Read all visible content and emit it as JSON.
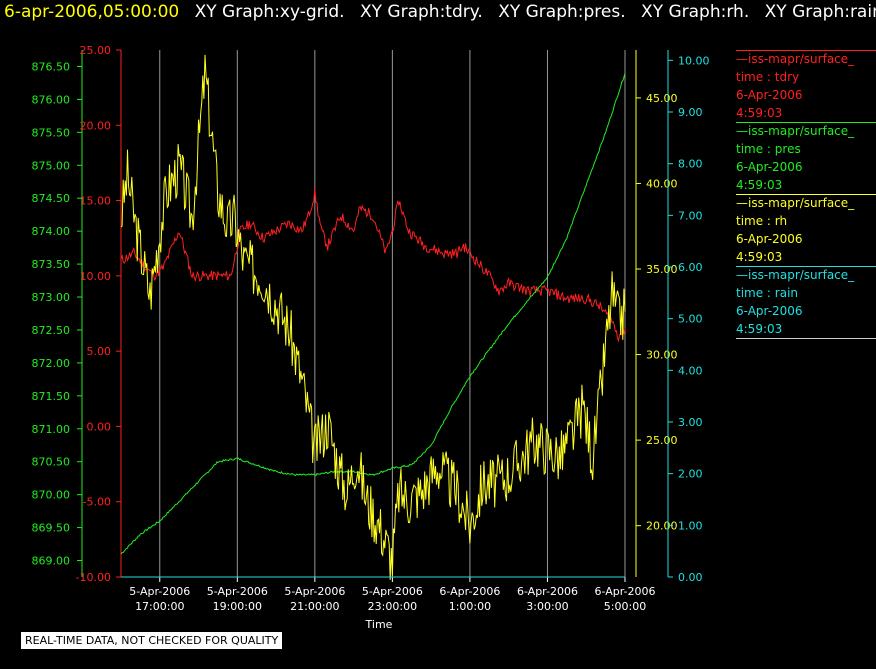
{
  "header": {
    "timestamp": "6-apr-2006,05:00:00",
    "graphs": [
      "XY Graph:xy-grid.",
      "XY Graph:tdry.",
      "XY Graph:pres.",
      "XY Graph:rh.",
      "XY Graph:rain."
    ]
  },
  "legend": [
    {
      "source": "—iss-mapr/surface_",
      "field": "time : tdry",
      "date": "6-Apr-2006",
      "time": "4:59:03",
      "color": "#ff2020"
    },
    {
      "source": "—iss-mapr/surface_",
      "field": "time : pres",
      "date": "6-Apr-2006",
      "time": "4:59:03",
      "color": "#20ee20"
    },
    {
      "source": "—iss-mapr/surface_",
      "field": "time : rh",
      "date": "6-Apr-2006",
      "time": "4:59:03",
      "color": "#ffff20"
    },
    {
      "source": "—iss-mapr/surface_",
      "field": "time : rain",
      "date": "6-Apr-2006",
      "time": "4:59:03",
      "color": "#20e0e0"
    }
  ],
  "disclaimer": "REAL-TIME DATA, NOT CHECKED FOR QUALITY",
  "chart_data": {
    "type": "line",
    "xlabel": "Time",
    "x_range": [
      "5-Apr-2006 16:00:00",
      "6-Apr-2006 05:00:00"
    ],
    "x_ticks": [
      {
        "date": "5-Apr-2006",
        "time": "17:00:00"
      },
      {
        "date": "5-Apr-2006",
        "time": "19:00:00"
      },
      {
        "date": "5-Apr-2006",
        "time": "21:00:00"
      },
      {
        "date": "5-Apr-2006",
        "time": "23:00:00"
      },
      {
        "date": "6-Apr-2006",
        "time": "1:00:00"
      },
      {
        "date": "6-Apr-2006",
        "time": "3:00:00"
      },
      {
        "date": "6-Apr-2006",
        "time": "5:00:00"
      }
    ],
    "grid": "vertical",
    "axes": {
      "pres": {
        "ylim": [
          868.75,
          876.75
        ],
        "ticks": [
          "869.00",
          "869.50",
          "870.00",
          "870.50",
          "871.00",
          "871.50",
          "872.00",
          "872.50",
          "873.00",
          "873.50",
          "874.00",
          "874.50",
          "875.00",
          "875.50",
          "876.00",
          "876.50"
        ],
        "color": "#20ee20"
      },
      "tdry": {
        "ylim": [
          -10,
          25
        ],
        "ticks": [
          "-10.00",
          "-5.00",
          "0.00",
          "5.00",
          "10.00",
          "15.00",
          "20.00",
          "25.00"
        ],
        "color": "#ff2020"
      },
      "rh": {
        "ylim": [
          17.0,
          47.8
        ],
        "ticks": [
          "20.00",
          "25.00",
          "30.00",
          "35.00",
          "40.00",
          "45.00"
        ],
        "color": "#ffff20"
      },
      "rain": {
        "ylim": [
          0.0,
          10.2
        ],
        "ticks": [
          "0.00",
          "1.00",
          "2.00",
          "3.00",
          "4.00",
          "5.00",
          "6.00",
          "7.00",
          "8.00",
          "9.00",
          "10.00"
        ],
        "color": "#20e0e0"
      }
    },
    "series": [
      {
        "name": "tdry",
        "axis": "tdry",
        "x": [
          "5-Apr-2006 16:00:00",
          "5-Apr-2006 16:20:00",
          "5-Apr-2006 16:50:00",
          "5-Apr-2006 17:05:00",
          "5-Apr-2006 17:30:00",
          "5-Apr-2006 17:50:00",
          "5-Apr-2006 18:20:00",
          "5-Apr-2006 18:50:00",
          "5-Apr-2006 19:05:00",
          "5-Apr-2006 19:20:00",
          "5-Apr-2006 19:40:00",
          "5-Apr-2006 20:00:00",
          "5-Apr-2006 20:20:00",
          "5-Apr-2006 20:40:00",
          "5-Apr-2006 20:50:00",
          "5-Apr-2006 21:00:00",
          "5-Apr-2006 21:10:00",
          "5-Apr-2006 21:20:00",
          "5-Apr-2006 21:40:00",
          "5-Apr-2006 22:00:00",
          "5-Apr-2006 22:10:00",
          "5-Apr-2006 22:30:00",
          "5-Apr-2006 22:50:00",
          "5-Apr-2006 23:00:00",
          "5-Apr-2006 23:10:00",
          "5-Apr-2006 23:25:00",
          "5-Apr-2006 23:50:00",
          "6-Apr-2006 00:20:00",
          "6-Apr-2006 00:40:00",
          "6-Apr-2006 00:50:00",
          "6-Apr-2006 01:10:00",
          "6-Apr-2006 01:30:00",
          "6-Apr-2006 01:45:00",
          "6-Apr-2006 02:00:00",
          "6-Apr-2006 02:30:00",
          "6-Apr-2006 03:00:00",
          "6-Apr-2006 03:30:00",
          "6-Apr-2006 04:00:00",
          "6-Apr-2006 04:20:00",
          "6-Apr-2006 04:40:00",
          "6-Apr-2006 04:50:00",
          "6-Apr-2006 05:00:00"
        ],
        "y": [
          11.0,
          11.5,
          10.0,
          10.5,
          13.0,
          10.0,
          10.0,
          10.0,
          13.0,
          13.5,
          12.5,
          13.0,
          13.5,
          13.0,
          14.0,
          15.5,
          13.0,
          12.0,
          14.0,
          13.0,
          14.5,
          14.0,
          11.5,
          13.0,
          15.0,
          13.0,
          12.0,
          11.5,
          11.5,
          12.0,
          11.0,
          10.0,
          9.0,
          9.5,
          9.0,
          9.0,
          8.5,
          8.5,
          8.0,
          7.0,
          6.0,
          6.5
        ]
      },
      {
        "name": "pres",
        "axis": "pres",
        "x": [
          "5-Apr-2006 16:00:00",
          "5-Apr-2006 16:30:00",
          "5-Apr-2006 17:00:00",
          "5-Apr-2006 17:30:00",
          "5-Apr-2006 18:00:00",
          "5-Apr-2006 18:30:00",
          "5-Apr-2006 19:00:00",
          "5-Apr-2006 19:30:00",
          "5-Apr-2006 20:00:00",
          "5-Apr-2006 20:30:00",
          "5-Apr-2006 21:00:00",
          "5-Apr-2006 21:30:00",
          "5-Apr-2006 22:00:00",
          "5-Apr-2006 22:30:00",
          "5-Apr-2006 23:00:00",
          "5-Apr-2006 23:30:00",
          "6-Apr-2006 00:00:00",
          "6-Apr-2006 00:30:00",
          "6-Apr-2006 01:00:00",
          "6-Apr-2006 01:30:00",
          "6-Apr-2006 02:00:00",
          "6-Apr-2006 02:30:00",
          "6-Apr-2006 03:00:00",
          "6-Apr-2006 03:30:00",
          "6-Apr-2006 04:00:00",
          "6-Apr-2006 04:30:00",
          "6-Apr-2006 05:00:00"
        ],
        "y": [
          869.1,
          869.4,
          869.6,
          869.9,
          870.2,
          870.5,
          870.55,
          870.45,
          870.35,
          870.3,
          870.3,
          870.35,
          870.35,
          870.3,
          870.4,
          870.45,
          870.75,
          871.3,
          871.8,
          872.2,
          872.6,
          872.95,
          873.3,
          873.9,
          874.7,
          875.5,
          876.4
        ]
      },
      {
        "name": "rh",
        "axis": "rh",
        "x": [
          "5-Apr-2006 16:00:00",
          "5-Apr-2006 16:10:00",
          "5-Apr-2006 16:25:00",
          "5-Apr-2006 16:45:00",
          "5-Apr-2006 17:10:00",
          "5-Apr-2006 17:30:00",
          "5-Apr-2006 17:50:00",
          "5-Apr-2006 18:10:00",
          "5-Apr-2006 18:30:00",
          "5-Apr-2006 18:45:00",
          "5-Apr-2006 18:55:00",
          "5-Apr-2006 19:10:00",
          "5-Apr-2006 19:25:00",
          "5-Apr-2006 19:40:00",
          "5-Apr-2006 20:00:00",
          "5-Apr-2006 20:20:00",
          "5-Apr-2006 20:40:00",
          "5-Apr-2006 21:00:00",
          "5-Apr-2006 21:20:00",
          "5-Apr-2006 21:40:00",
          "5-Apr-2006 21:50:00",
          "5-Apr-2006 22:05:00",
          "5-Apr-2006 22:20:00",
          "5-Apr-2006 22:40:00",
          "5-Apr-2006 23:00:00",
          "5-Apr-2006 23:10:00",
          "5-Apr-2006 23:25:00",
          "5-Apr-2006 23:45:00",
          "6-Apr-2006 00:10:00",
          "6-Apr-2006 00:40:00",
          "6-Apr-2006 01:00:00",
          "6-Apr-2006 01:20:00",
          "6-Apr-2006 01:40:00",
          "6-Apr-2006 02:00:00",
          "6-Apr-2006 02:20:00",
          "6-Apr-2006 02:40:00",
          "6-Apr-2006 03:00:00",
          "6-Apr-2006 03:20:00",
          "6-Apr-2006 03:40:00",
          "6-Apr-2006 03:55:00",
          "6-Apr-2006 04:10:00",
          "6-Apr-2006 04:20:00",
          "6-Apr-2006 04:30:00",
          "6-Apr-2006 04:40:00",
          "6-Apr-2006 04:50:00",
          "6-Apr-2006 05:00:00"
        ],
        "y": [
          38.0,
          40.5,
          37.0,
          33.5,
          39.5,
          41.0,
          38.0,
          46.5,
          39.5,
          37.5,
          38.0,
          35.5,
          35.0,
          34.5,
          33.0,
          31.5,
          28.5,
          24.5,
          26.0,
          23.0,
          22.0,
          24.0,
          21.5,
          20.0,
          18.0,
          22.0,
          21.5,
          22.0,
          23.5,
          22.0,
          20.0,
          22.5,
          22.5,
          23.0,
          24.0,
          25.0,
          24.5,
          24.0,
          25.5,
          27.0,
          24.0,
          27.0,
          30.5,
          33.5,
          32.0,
          32.5
        ]
      },
      {
        "name": "rain",
        "axis": "rain",
        "x": [
          "5-Apr-2006 16:00:00",
          "6-Apr-2006 05:00:00"
        ],
        "y": [
          0.0,
          0.0
        ]
      }
    ]
  }
}
